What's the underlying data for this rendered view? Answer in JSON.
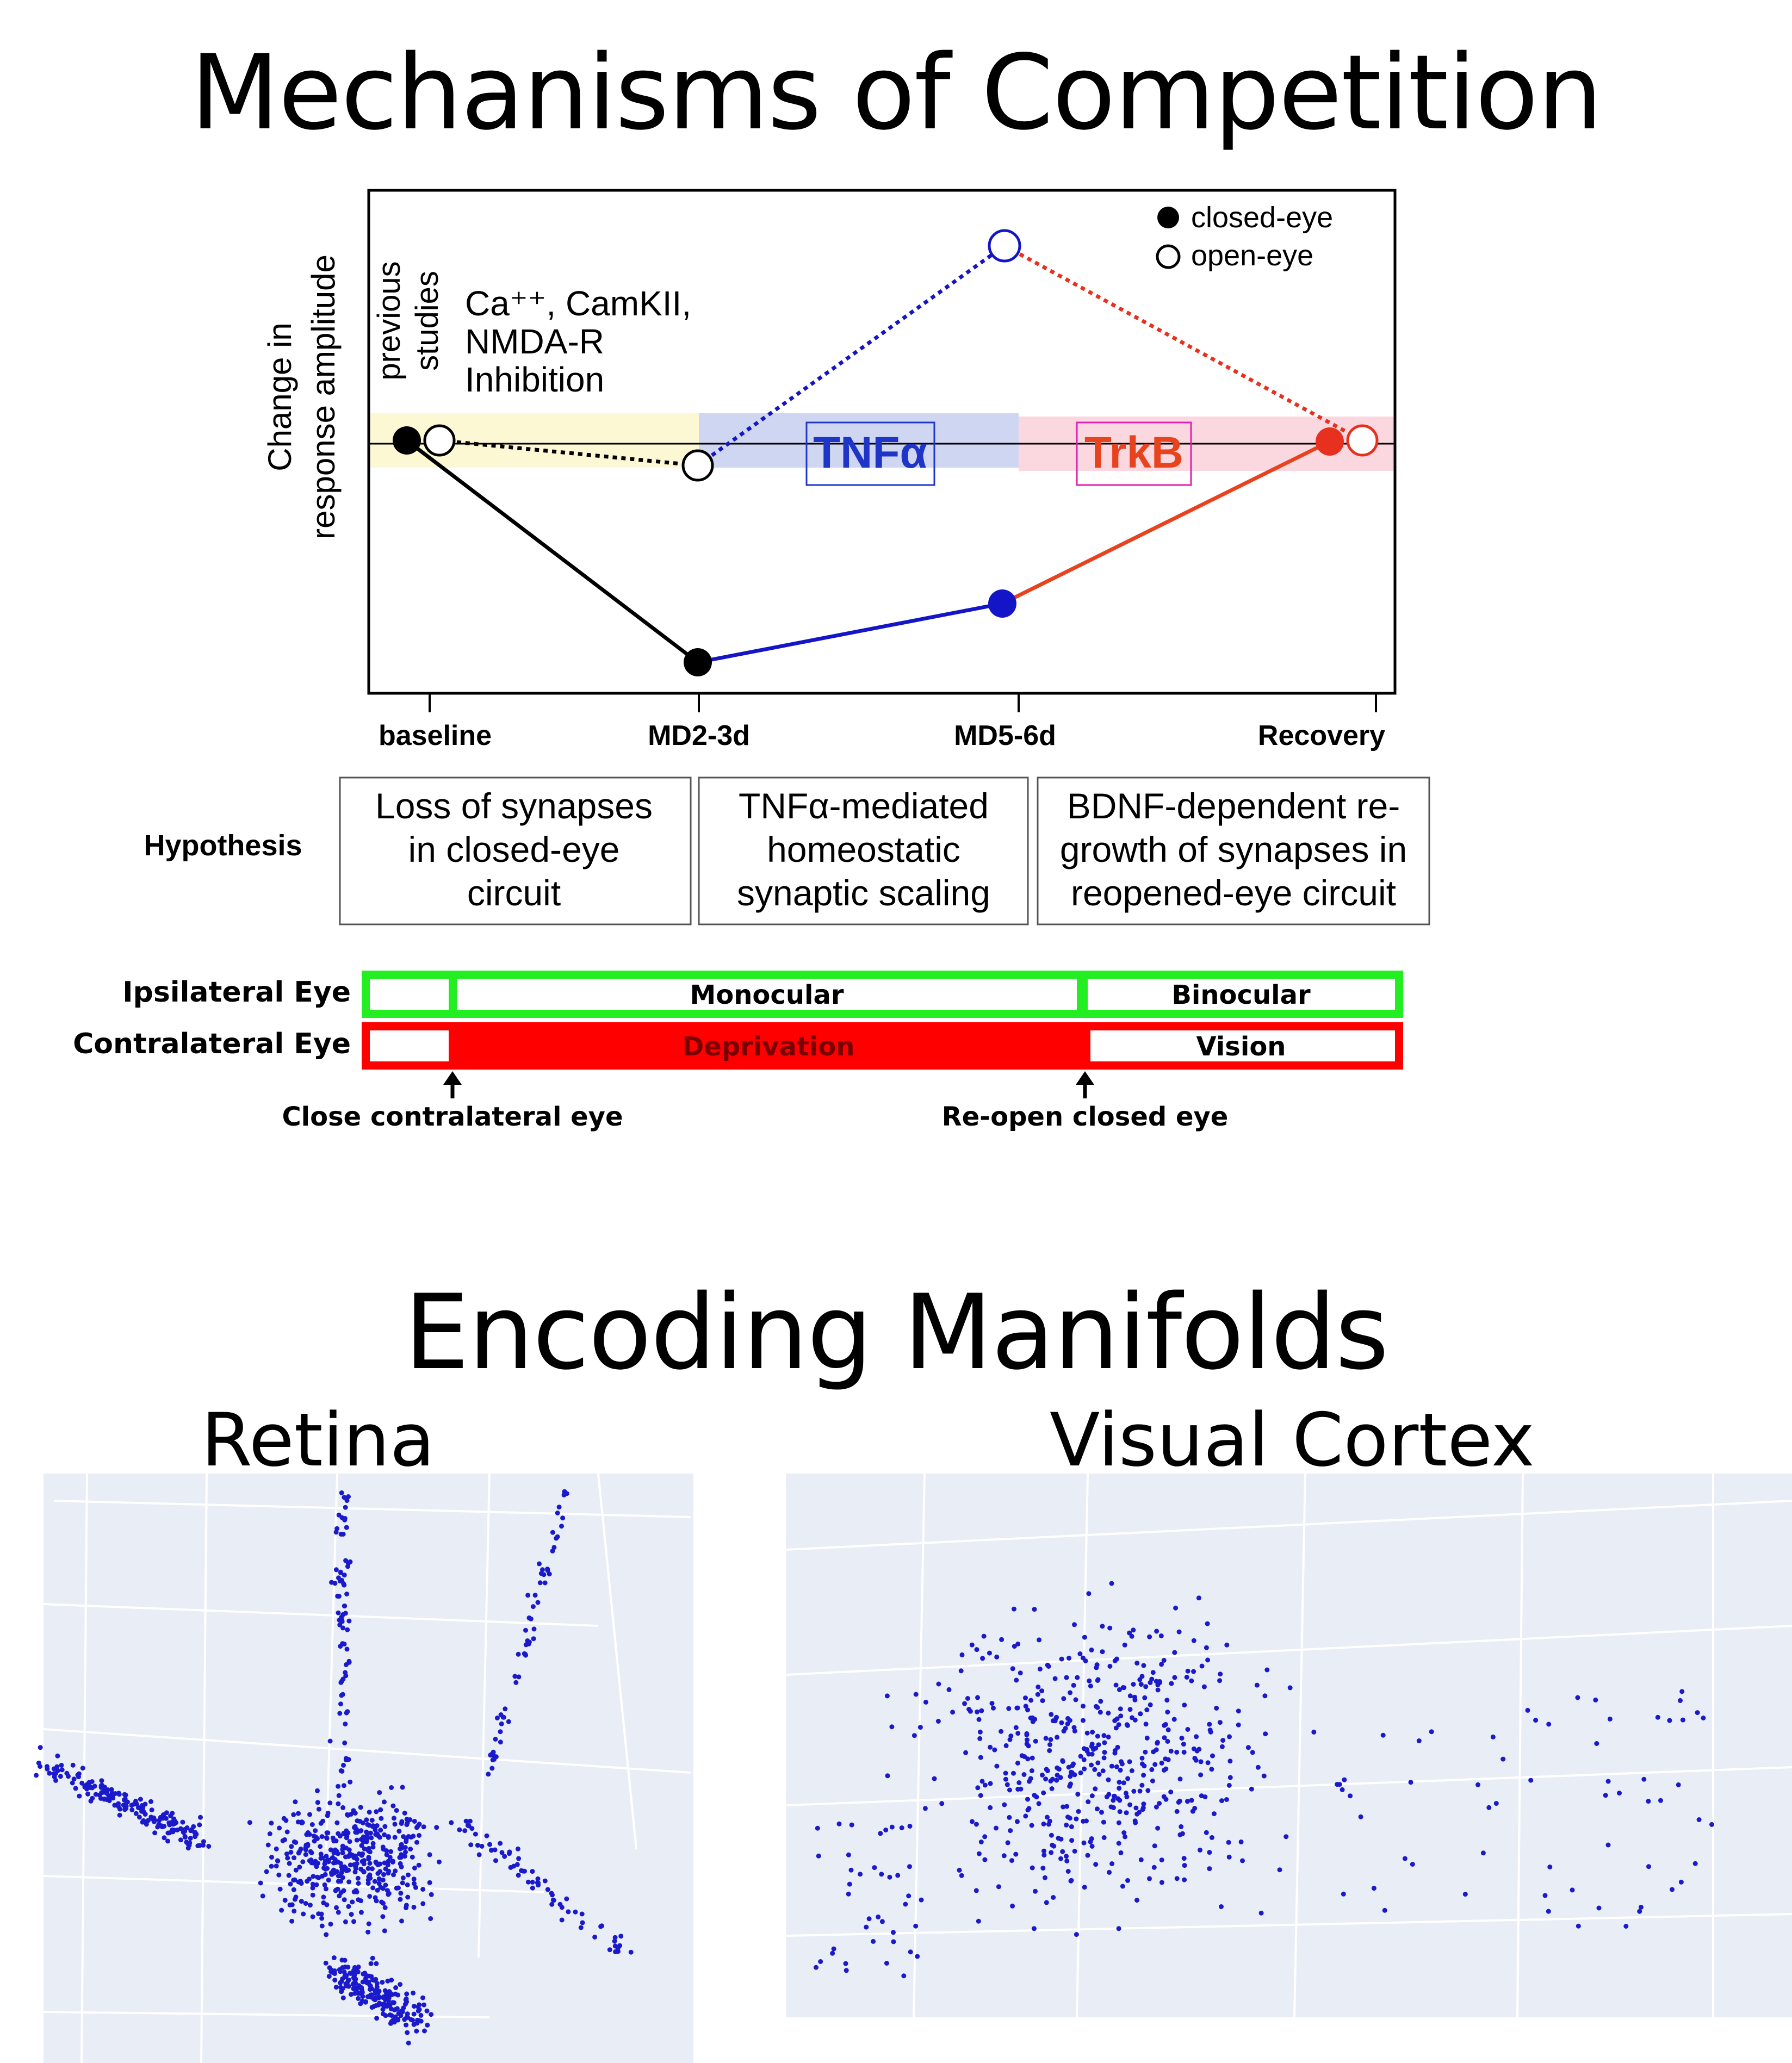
{
  "section1": {
    "title": "Mechanisms of Competition",
    "plot": {
      "ylabel_line1": "Change in",
      "ylabel_line2": "response amplitude",
      "legend": [
        {
          "label": "closed-eye",
          "filled": true
        },
        {
          "label": "open-eye",
          "filled": false
        }
      ],
      "annotation_previous_line1": "previous",
      "annotation_previous_line2": "studies",
      "annotation_ca_line1": "Ca⁺⁺, CamKII,",
      "annotation_ca_line2": "NMDA-R",
      "annotation_ca_line3": "Inhibition",
      "tnf_label": "TNFα",
      "trkb_label": "TrkB",
      "x_ticks": [
        "baseline",
        "MD2-3d",
        "MD5-6d",
        "Recovery"
      ],
      "colors": {
        "baseline_band": "#fdf8d4",
        "tnf_band": "#cfd6f2",
        "trkb_band": "#fbd8e0",
        "tnf_text": "#1f35c8",
        "trkb_text": "#e8431f",
        "blue": "#1515c8",
        "red": "#e8301e"
      }
    },
    "hypothesis": {
      "label": "Hypothesis",
      "boxes": [
        {
          "line1": "Loss of synapses",
          "line2": "in closed-eye",
          "line3": "circuit"
        },
        {
          "line1": "TNFα-mediated",
          "line2": "homeostatic",
          "line3": "synaptic scaling"
        },
        {
          "line1": "BDNF-dependent re-",
          "line2": "growth of synapses in",
          "line3": "reopened-eye circuit"
        }
      ]
    },
    "timeline": {
      "ipsi_label": "Ipsilateral Eye",
      "contra_label": "Contralateral Eye",
      "monocular": "Monocular",
      "binocular": "Binocular",
      "deprivation": "Deprivation",
      "vision": "Vision",
      "close_label": "Close contralateral eye",
      "reopen_label": "Re-open closed eye",
      "green": "#22ee22",
      "red": "#ff0000"
    }
  },
  "section2": {
    "title": "Encoding Manifolds",
    "panels": [
      {
        "label": "Retina"
      },
      {
        "label": "Visual Cortex"
      }
    ],
    "point_color": "#1a1acc",
    "background": "#e8edf6"
  }
}
